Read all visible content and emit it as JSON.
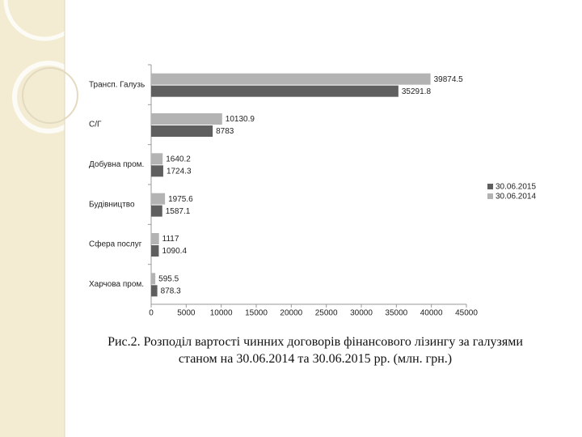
{
  "chart_data": {
    "type": "hbar",
    "categories": [
      "Трансп. Галузь",
      "С/Г",
      "Добувна пром.",
      "Будівництво",
      "Сфера послуг",
      "Харчова пром."
    ],
    "series": [
      {
        "name": "30.06.2015",
        "color": "#5f5f5f",
        "values": [
          35291.8,
          8783,
          1724.3,
          1587.1,
          1090.4,
          878.3
        ]
      },
      {
        "name": "30.06.2014",
        "color": "#b3b3b3",
        "values": [
          39874.5,
          10130.9,
          1640.2,
          1975.6,
          1117,
          595.5
        ]
      }
    ],
    "xlim": [
      0,
      45000
    ],
    "xticks": [
      0,
      5000,
      10000,
      15000,
      20000,
      25000,
      30000,
      35000,
      40000,
      45000
    ],
    "legend": "right",
    "caption": "Рис.2. Розподіл вартості чинних договорів фінансового лізингу за галузями станом на 30.06.2014 та 30.06.2015 рр. (млн. грн.)"
  }
}
